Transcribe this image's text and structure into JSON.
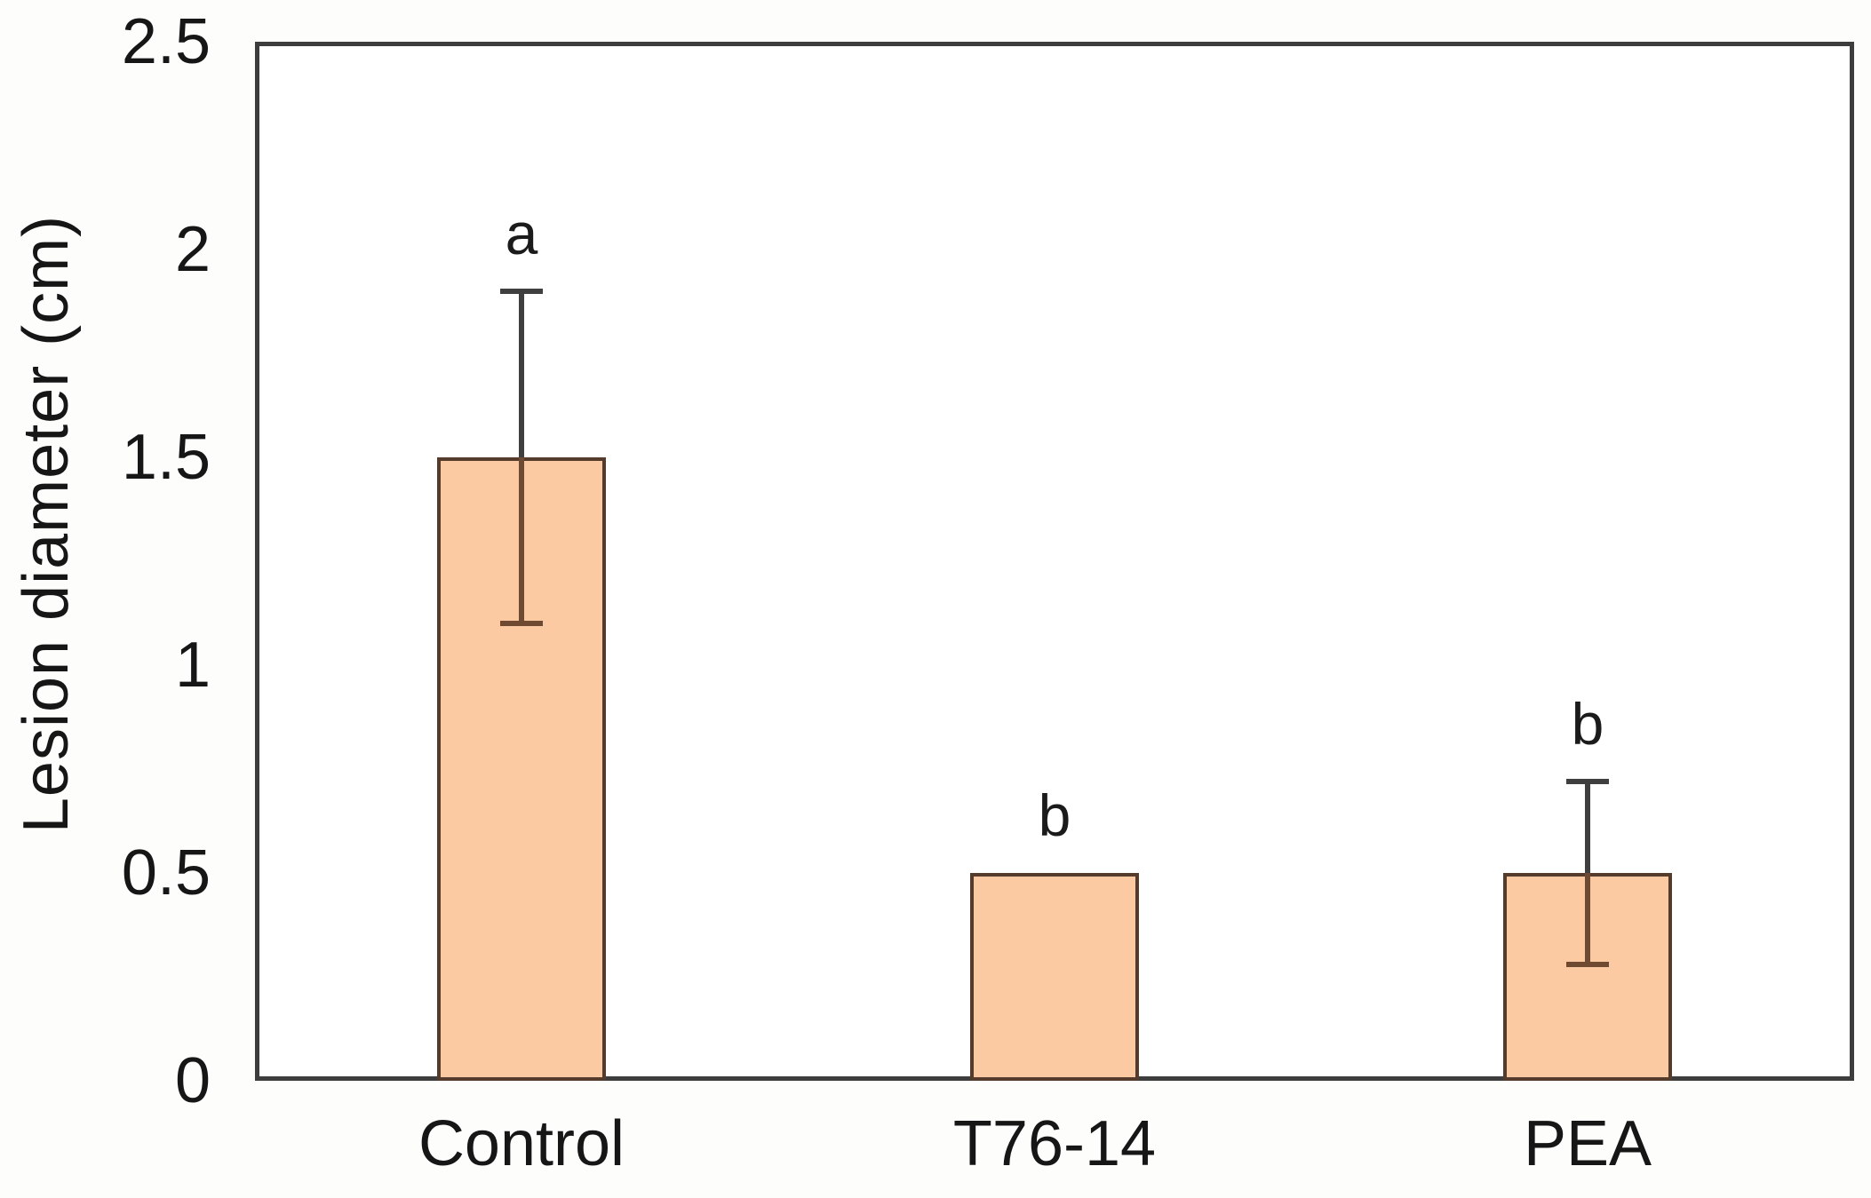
{
  "chart_data": {
    "type": "bar",
    "title": "",
    "xlabel": "",
    "ylabel": "Lesion diameter (cm)",
    "categories": [
      "Control",
      "T76-14",
      "PEA"
    ],
    "values": [
      1.5,
      0.5,
      0.5
    ],
    "error_plus": [
      0.4,
      null,
      0.22
    ],
    "error_minus": [
      0.4,
      null,
      0.22
    ],
    "significance_letters": [
      "a",
      "b",
      "b"
    ],
    "ylim": [
      0,
      2.5
    ],
    "yticks": [
      0,
      0.5,
      1,
      1.5,
      2,
      2.5
    ],
    "ytick_labels": [
      "0",
      "0.5",
      "1",
      "1.5",
      "2",
      "2.5"
    ],
    "grid": false,
    "legend": false,
    "colors": {
      "bar_fill": "#fbc9a2",
      "bar_border": "#553b2b",
      "frame": "#3d3d3d",
      "error_outside": "#3f3f3f",
      "error_inside": "#6f4a33",
      "text": "#161616",
      "background": "#fdfdfc"
    }
  }
}
